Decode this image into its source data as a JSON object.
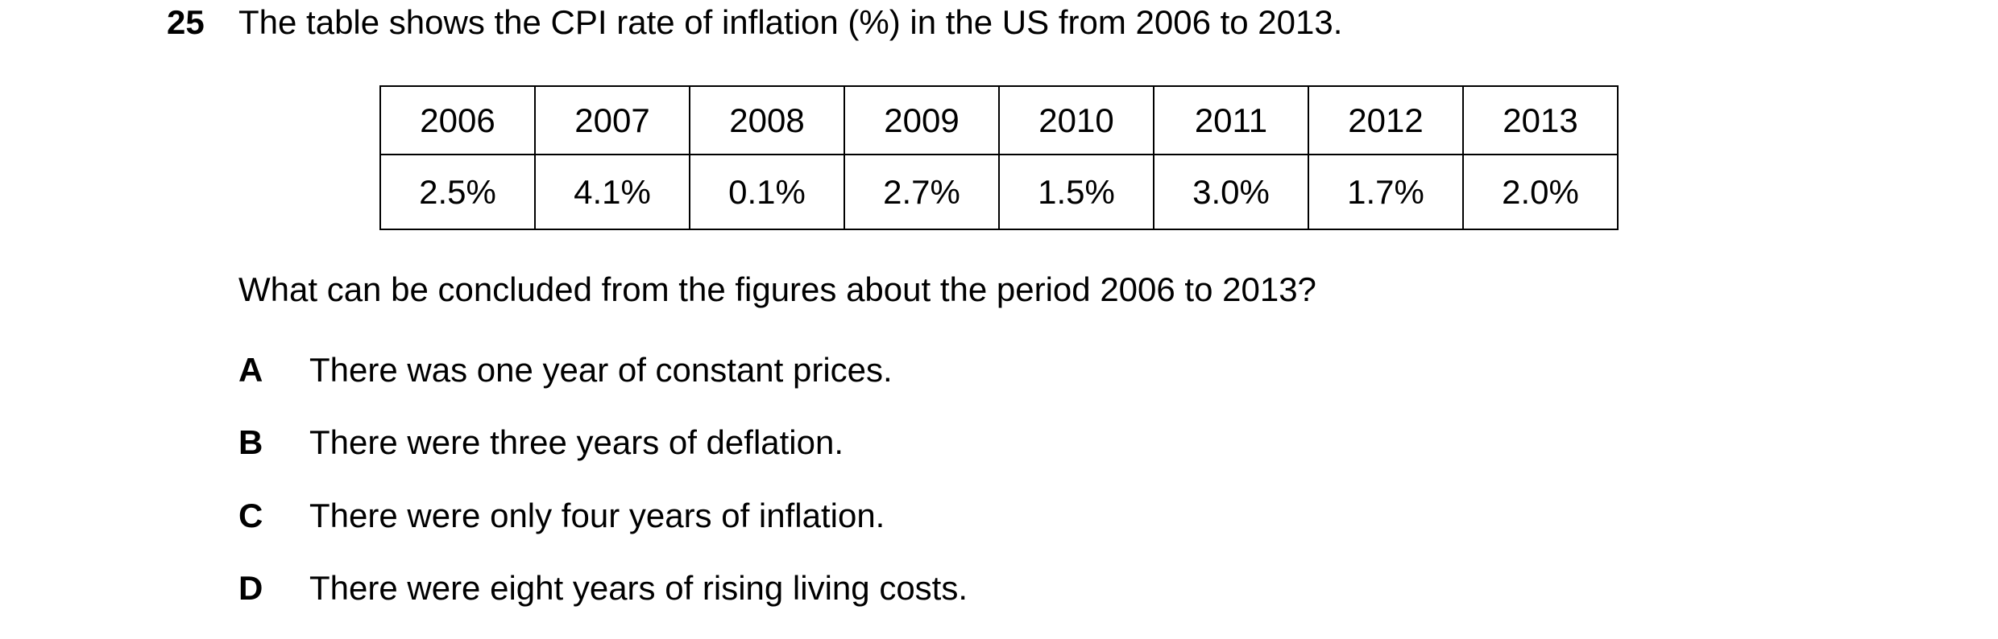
{
  "question": {
    "number": "25",
    "text": "The table shows the CPI rate of inflation (%) in the US from 2006 to 2013."
  },
  "table": {
    "years": [
      "2006",
      "2007",
      "2008",
      "2009",
      "2010",
      "2011",
      "2012",
      "2013"
    ],
    "rates": [
      "2.5%",
      "4.1%",
      "0.1%",
      "2.7%",
      "1.5%",
      "3.0%",
      "1.7%",
      "2.0%"
    ]
  },
  "prompt": "What can be concluded from the figures about the period 2006 to 2013?",
  "options": [
    {
      "letter": "A",
      "text": "There was one year of constant prices."
    },
    {
      "letter": "B",
      "text": "There were three years of deflation."
    },
    {
      "letter": "C",
      "text": "There were only four years of inflation."
    },
    {
      "letter": "D",
      "text": "There were eight years of rising living costs."
    }
  ]
}
